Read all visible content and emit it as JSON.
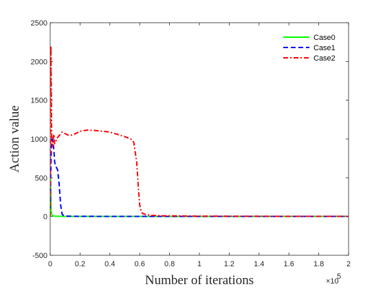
{
  "chart_data": {
    "type": "line",
    "xlabel": "Number of iterations",
    "ylabel": "Action value",
    "x_exponent_label": "×10",
    "x_exponent_power": "5",
    "xlim": [
      0,
      2
    ],
    "ylim": [
      -500,
      2500
    ],
    "x_ticks": [
      0,
      0.2,
      0.4,
      0.6,
      0.8,
      1,
      1.2,
      1.4,
      1.6,
      1.8,
      2
    ],
    "x_tick_labels": [
      "0",
      "0.2",
      "0.4",
      "0.6",
      "0.8",
      "1",
      "1.2",
      "1.4",
      "1.6",
      "1.8",
      "2"
    ],
    "y_ticks": [
      -500,
      0,
      500,
      1000,
      1500,
      2000,
      2500
    ],
    "y_tick_labels": [
      "-500",
      "0",
      "500",
      "1000",
      "1500",
      "2000",
      "2500"
    ],
    "grid": false,
    "legend_position": "top-right",
    "series": [
      {
        "name": "Case0",
        "color": "#00ff00",
        "dash": "solid",
        "x": [
          0,
          0.002,
          0.004,
          0.006,
          0.01,
          0.015,
          0.03,
          0.06,
          0.2,
          0.6,
          1.0,
          2.0
        ],
        "y": [
          0,
          480,
          300,
          80,
          30,
          10,
          5,
          3,
          2,
          2,
          1,
          1
        ]
      },
      {
        "name": "Case1",
        "color": "#0000ff",
        "dash": "dashed",
        "x": [
          0,
          0.003,
          0.008,
          0.012,
          0.018,
          0.025,
          0.03,
          0.04,
          0.05,
          0.06,
          0.07,
          0.08,
          0.09,
          0.1,
          0.15,
          0.3,
          1.0,
          2.0
        ],
        "y": [
          0,
          500,
          900,
          1000,
          980,
          850,
          700,
          640,
          600,
          420,
          150,
          30,
          10,
          5,
          3,
          2,
          1,
          1
        ]
      },
      {
        "name": "Case2",
        "color": "#ff0000",
        "dash": "dashdot",
        "x": [
          0,
          0.003,
          0.005,
          0.007,
          0.01,
          0.015,
          0.02,
          0.025,
          0.03,
          0.05,
          0.08,
          0.1,
          0.12,
          0.15,
          0.2,
          0.25,
          0.3,
          0.35,
          0.4,
          0.45,
          0.5,
          0.54,
          0.56,
          0.58,
          0.59,
          0.6,
          0.61,
          0.62,
          0.64,
          0.68,
          0.75,
          1.0,
          1.5,
          2.0
        ],
        "y": [
          0,
          1400,
          2200,
          1700,
          1050,
          900,
          1000,
          1060,
          940,
          1020,
          1090,
          1070,
          1050,
          1050,
          1100,
          1115,
          1110,
          1100,
          1090,
          1060,
          1030,
          1000,
          960,
          700,
          400,
          150,
          60,
          40,
          25,
          15,
          10,
          5,
          3,
          2
        ]
      }
    ]
  }
}
